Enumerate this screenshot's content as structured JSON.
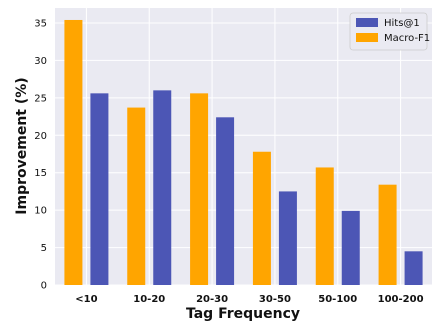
{
  "chart_data": {
    "type": "bar",
    "categories": [
      "<10",
      "10-20",
      "20-30",
      "30-50",
      "50-100",
      "100-200"
    ],
    "series": [
      {
        "name": "Macro-F1",
        "color": "#FFA500",
        "values": [
          35.4,
          23.7,
          25.6,
          17.8,
          15.7,
          13.4
        ]
      },
      {
        "name": "Hits@1",
        "color": "#4C56B5",
        "values": [
          25.6,
          26.0,
          22.4,
          12.5,
          9.9,
          4.5
        ]
      }
    ],
    "legend_order": [
      "Hits@1",
      "Macro-F1"
    ],
    "title": "",
    "xlabel": "Tag Frequency",
    "ylabel": "Improvement (%)",
    "ylim": [
      0,
      37
    ],
    "yticks": [
      0,
      5,
      10,
      15,
      20,
      25,
      30,
      35
    ],
    "grid": true,
    "legend_position": "top-right",
    "plot_background": "#EAEAF2"
  }
}
